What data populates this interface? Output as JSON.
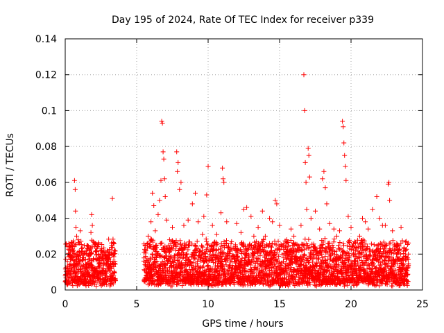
{
  "chart_data": {
    "type": "scatter",
    "title": "Day 195 of 2024, Rate Of TEC Index for receiver p339",
    "xlabel": "GPS time / hours",
    "ylabel": "ROTI / TECUs",
    "xlim": [
      0,
      25
    ],
    "ylim": [
      0,
      0.14
    ],
    "x_ticks": [
      "0",
      "5",
      "10",
      "15",
      "20",
      "25"
    ],
    "y_ticks": [
      "0",
      "0.02",
      "0.04",
      "0.06",
      "0.08",
      "0.1",
      "0.12",
      "0.14"
    ],
    "grid": true,
    "marker": "+",
    "color": "#ff0000",
    "series": [
      {
        "points": [
          [
            0.1,
            0.005
          ],
          [
            0.15,
            0.016
          ],
          [
            0.3,
            0.022
          ],
          [
            0.35,
            0.009
          ],
          [
            0.5,
            0.018
          ],
          [
            0.6,
            0.026
          ],
          [
            0.65,
            0.061
          ],
          [
            0.7,
            0.056
          ],
          [
            0.72,
            0.044
          ],
          [
            0.75,
            0.035
          ],
          [
            0.8,
            0.03
          ],
          [
            0.9,
            0.028
          ],
          [
            1.0,
            0.021
          ],
          [
            1.05,
            0.033
          ],
          [
            1.2,
            0.018
          ],
          [
            1.4,
            0.012
          ],
          [
            1.6,
            0.015
          ],
          [
            1.8,
            0.032
          ],
          [
            1.85,
            0.042
          ],
          [
            1.9,
            0.036
          ],
          [
            1.95,
            0.027
          ],
          [
            2.0,
            0.017
          ],
          [
            2.2,
            0.011
          ],
          [
            2.4,
            0.015
          ],
          [
            2.6,
            0.019
          ],
          [
            2.8,
            0.014
          ],
          [
            3.0,
            0.021
          ],
          [
            3.1,
            0.018
          ],
          [
            3.2,
            0.013
          ],
          [
            3.3,
            0.051
          ],
          [
            5.8,
            0.03
          ],
          [
            5.95,
            0.024
          ],
          [
            6.0,
            0.038
          ],
          [
            6.1,
            0.054
          ],
          [
            6.2,
            0.047
          ],
          [
            6.3,
            0.033
          ],
          [
            6.4,
            0.025
          ],
          [
            6.5,
            0.042
          ],
          [
            6.6,
            0.05
          ],
          [
            6.7,
            0.061
          ],
          [
            6.75,
            0.094
          ],
          [
            6.8,
            0.093
          ],
          [
            6.85,
            0.077
          ],
          [
            6.9,
            0.073
          ],
          [
            6.95,
            0.062
          ],
          [
            7.0,
            0.052
          ],
          [
            7.1,
            0.039
          ],
          [
            7.3,
            0.028
          ],
          [
            7.5,
            0.035
          ],
          [
            7.8,
            0.077
          ],
          [
            7.85,
            0.066
          ],
          [
            7.9,
            0.071
          ],
          [
            8.0,
            0.056
          ],
          [
            8.1,
            0.06
          ],
          [
            8.3,
            0.036
          ],
          [
            8.6,
            0.039
          ],
          [
            8.9,
            0.048
          ],
          [
            9.1,
            0.054
          ],
          [
            9.3,
            0.038
          ],
          [
            9.6,
            0.031
          ],
          [
            9.7,
            0.041
          ],
          [
            9.9,
            0.053
          ],
          [
            10.0,
            0.069
          ],
          [
            10.3,
            0.036
          ],
          [
            10.6,
            0.031
          ],
          [
            10.9,
            0.043
          ],
          [
            11.0,
            0.068
          ],
          [
            11.05,
            0.062
          ],
          [
            11.1,
            0.06
          ],
          [
            11.3,
            0.038
          ],
          [
            11.6,
            0.026
          ],
          [
            12.0,
            0.037
          ],
          [
            12.3,
            0.032
          ],
          [
            12.5,
            0.045
          ],
          [
            12.7,
            0.046
          ],
          [
            13.0,
            0.041
          ],
          [
            13.2,
            0.03
          ],
          [
            13.5,
            0.035
          ],
          [
            13.8,
            0.044
          ],
          [
            14.0,
            0.03
          ],
          [
            14.3,
            0.04
          ],
          [
            14.5,
            0.038
          ],
          [
            14.7,
            0.05
          ],
          [
            14.8,
            0.048
          ],
          [
            15.0,
            0.036
          ],
          [
            15.3,
            0.026
          ],
          [
            15.5,
            0.028
          ],
          [
            15.8,
            0.034
          ],
          [
            16.0,
            0.03
          ],
          [
            16.3,
            0.022
          ],
          [
            16.5,
            0.036
          ],
          [
            16.7,
            0.12
          ],
          [
            16.75,
            0.1
          ],
          [
            16.8,
            0.071
          ],
          [
            16.85,
            0.06
          ],
          [
            16.9,
            0.045
          ],
          [
            17.0,
            0.079
          ],
          [
            17.05,
            0.075
          ],
          [
            17.1,
            0.063
          ],
          [
            17.2,
            0.04
          ],
          [
            17.5,
            0.044
          ],
          [
            17.8,
            0.034
          ],
          [
            18.0,
            0.062
          ],
          [
            18.1,
            0.066
          ],
          [
            18.2,
            0.057
          ],
          [
            18.3,
            0.048
          ],
          [
            18.5,
            0.037
          ],
          [
            18.8,
            0.034
          ],
          [
            19.0,
            0.03
          ],
          [
            19.2,
            0.033
          ],
          [
            19.4,
            0.094
          ],
          [
            19.45,
            0.091
          ],
          [
            19.5,
            0.082
          ],
          [
            19.55,
            0.075
          ],
          [
            19.6,
            0.069
          ],
          [
            19.65,
            0.061
          ],
          [
            19.8,
            0.041
          ],
          [
            20.0,
            0.035
          ],
          [
            20.3,
            0.026
          ],
          [
            20.6,
            0.03
          ],
          [
            20.8,
            0.04
          ],
          [
            21.0,
            0.038
          ],
          [
            21.2,
            0.034
          ],
          [
            21.5,
            0.045
          ],
          [
            21.8,
            0.052
          ],
          [
            22.0,
            0.04
          ],
          [
            22.2,
            0.036
          ],
          [
            22.4,
            0.036
          ],
          [
            22.6,
            0.059
          ],
          [
            22.65,
            0.06
          ],
          [
            22.7,
            0.05
          ],
          [
            22.9,
            0.033
          ],
          [
            23.2,
            0.026
          ],
          [
            23.5,
            0.035
          ],
          [
            23.8,
            0.022
          ],
          [
            24.0,
            0.017
          ]
        ]
      }
    ],
    "dense_band": {
      "segments": [
        [
          0,
          3.5
        ],
        [
          5.5,
          24
        ]
      ],
      "floor": 0.002,
      "typical_max": 0.025
    }
  }
}
